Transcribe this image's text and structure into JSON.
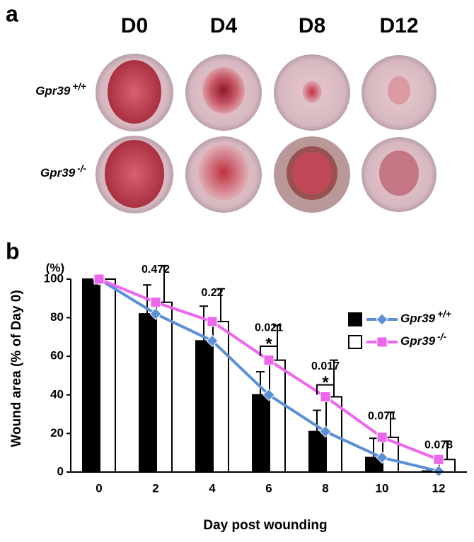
{
  "panel_a": {
    "label": "a",
    "columns": [
      "D0",
      "D4",
      "D8",
      "D12"
    ],
    "rows": [
      {
        "name": "Gpr39",
        "superscript": "+/+"
      },
      {
        "name": "Gpr39",
        "superscript": "-/-"
      }
    ]
  },
  "chart_data": {
    "type": "bar-line",
    "panel_label": "b",
    "unit_label": "(%)",
    "y_label": "Wound area (% of Day 0)",
    "x_label": "Day post wounding",
    "x": [
      0,
      2,
      4,
      6,
      8,
      10,
      12
    ],
    "xlim": [
      -1,
      13
    ],
    "xticks": [
      0,
      2,
      4,
      6,
      8,
      10,
      12
    ],
    "ylim": [
      0,
      100
    ],
    "yticks": [
      0,
      20,
      40,
      60,
      80,
      100
    ],
    "series": [
      {
        "name": "Gpr39",
        "superscript": "+/+",
        "color": "#000000",
        "line_color": "#5b8fd6",
        "marker": "diamond",
        "values": [
          100,
          82,
          68,
          40,
          21,
          7.5,
          0.5
        ],
        "errors": [
          0,
          15,
          18,
          12,
          11,
          10,
          1
        ]
      },
      {
        "name": "Gpr39",
        "superscript": "-/-",
        "color": "#ffffff",
        "line_color": "#ee66ee",
        "marker": "square",
        "values": [
          100,
          88,
          78,
          58,
          39,
          18,
          6.5
        ],
        "errors": [
          0,
          19,
          17,
          18,
          19,
          13,
          9.5
        ]
      }
    ],
    "annotations": [
      {
        "x": 2,
        "text": "0.472"
      },
      {
        "x": 4,
        "text": "0.22"
      },
      {
        "x": 6,
        "text": "0.021",
        "mark": "*"
      },
      {
        "x": 8,
        "text": "0.017",
        "mark": "*"
      },
      {
        "x": 10,
        "text": "0.071"
      },
      {
        "x": 12,
        "text": "0.078"
      }
    ],
    "legend": "top-right"
  }
}
